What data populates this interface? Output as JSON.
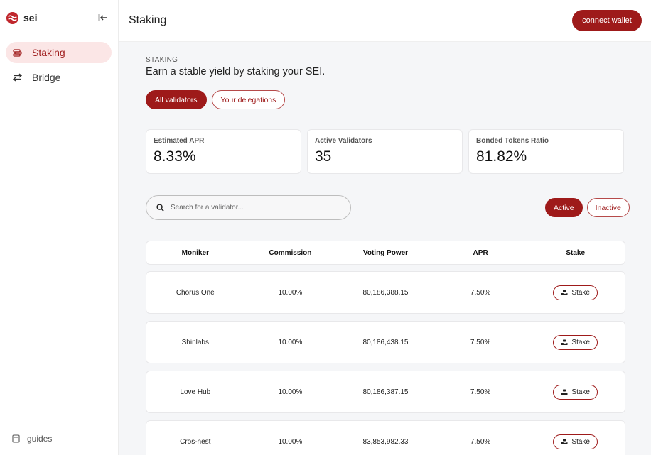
{
  "sidebar": {
    "logo_text": "sei",
    "items": [
      {
        "label": "Staking",
        "icon": "coins-icon",
        "active": true
      },
      {
        "label": "Bridge",
        "icon": "arrows-exchange-icon",
        "active": false
      }
    ],
    "footer": {
      "label": "guides",
      "icon": "book-icon"
    }
  },
  "header": {
    "title": "Staking",
    "connect_label": "connect wallet"
  },
  "main": {
    "section_label": "STAKING",
    "headline": "Earn a stable yield by staking your SEI.",
    "tabs": [
      {
        "label": "All validators",
        "active": true
      },
      {
        "label": "Your delegations",
        "active": false
      }
    ],
    "stats": [
      {
        "label": "Estimated APR",
        "value": "8.33%"
      },
      {
        "label": "Active Validators",
        "value": "35"
      },
      {
        "label": "Bonded Tokens Ratio",
        "value": "81.82%"
      }
    ],
    "search": {
      "placeholder": "Search for a validator..."
    },
    "filters": [
      {
        "label": "Active",
        "active": true
      },
      {
        "label": "Inactive",
        "active": false
      }
    ],
    "table": {
      "columns": [
        "Moniker",
        "Commission",
        "Voting Power",
        "APR",
        "Stake"
      ],
      "rows": [
        {
          "moniker": "Chorus One",
          "commission": "10.00%",
          "voting_power": "80,186,388.15",
          "apr": "7.50%",
          "action": "Stake"
        },
        {
          "moniker": "Shinlabs",
          "commission": "10.00%",
          "voting_power": "80,186,438.15",
          "apr": "7.50%",
          "action": "Stake"
        },
        {
          "moniker": "Love Hub",
          "commission": "10.00%",
          "voting_power": "80,186,387.15",
          "apr": "7.50%",
          "action": "Stake"
        },
        {
          "moniker": "Cros-nest",
          "commission": "10.00%",
          "voting_power": "83,853,982.33",
          "apr": "7.50%",
          "action": "Stake"
        }
      ]
    }
  },
  "colors": {
    "accent": "#9e1a1a",
    "accent_light": "#fbe6e6",
    "background": "#f5f6f8"
  }
}
